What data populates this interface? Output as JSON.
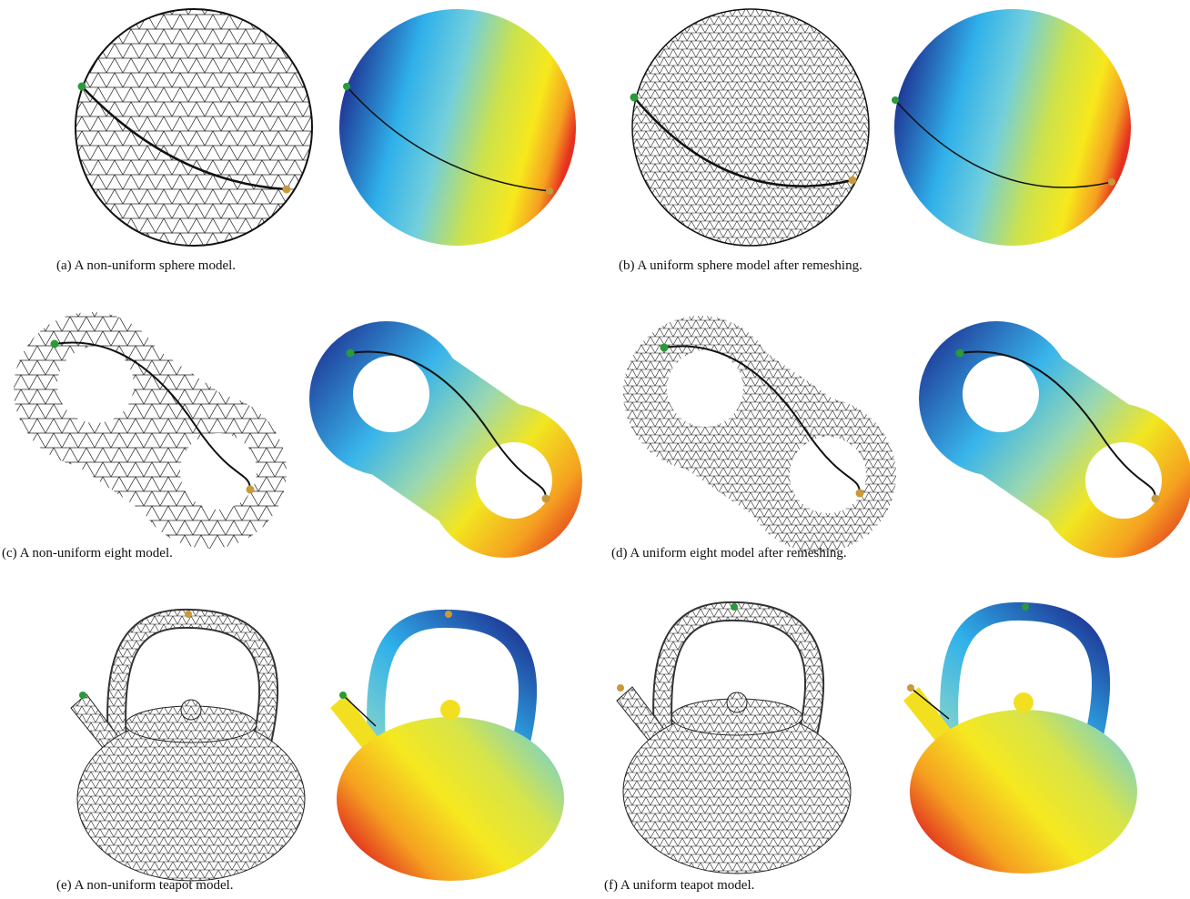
{
  "figure": {
    "subfigures": [
      {
        "caption": "(a) A non-uniform sphere model."
      },
      {
        "caption": "(b) A uniform sphere model after remeshing."
      },
      {
        "caption": "(c) A non-uniform eight model."
      },
      {
        "caption": "(d) A uniform eight model after remeshing."
      },
      {
        "caption": "(e) A non-uniform teapot model."
      },
      {
        "caption": "(f) A uniform teapot model."
      }
    ]
  }
}
